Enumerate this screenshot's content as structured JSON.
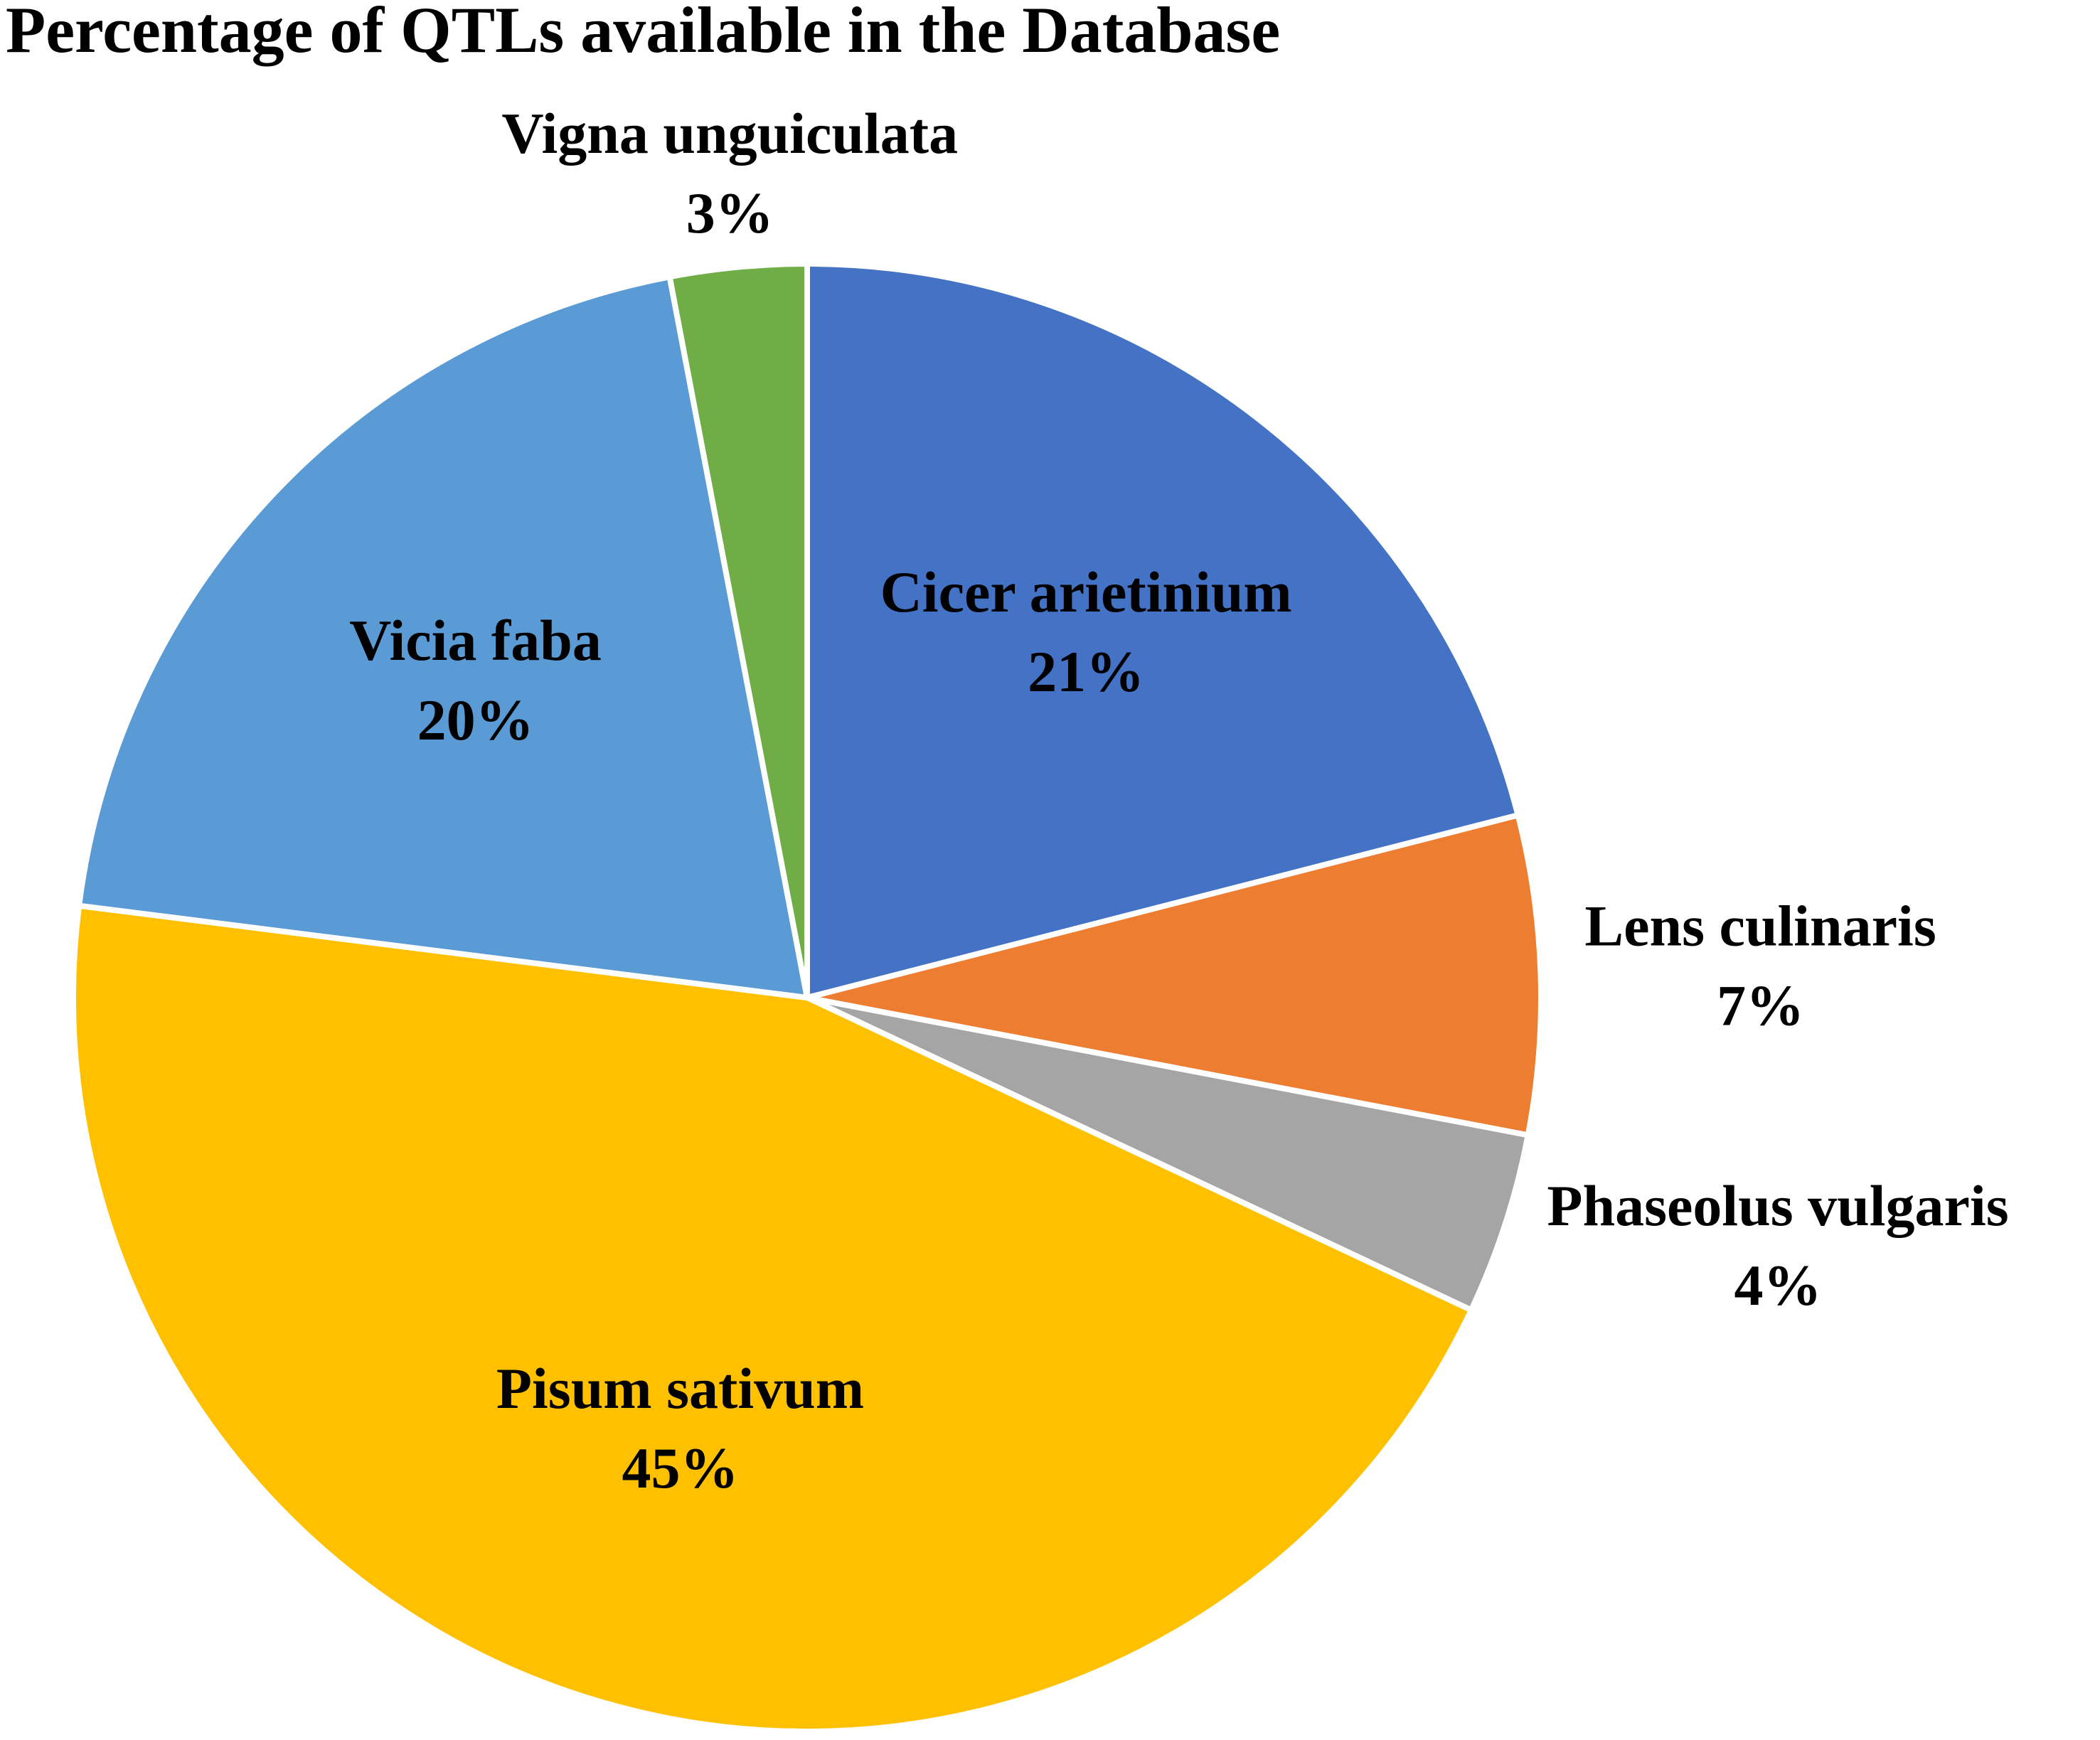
{
  "chart_data": {
    "type": "pie",
    "title": "Percentage of QTLs available in the Database",
    "categories": [
      "Cicer arietinium",
      "Lens culinaris",
      "Phaseolus vulgaris",
      "Pisum sativum",
      "Vicia faba",
      "Vigna unguiculata"
    ],
    "values": [
      21,
      7,
      4,
      45,
      20,
      3
    ],
    "value_labels": [
      "21%",
      "7%",
      "4%",
      "45%",
      "20%",
      "3%"
    ],
    "colors": [
      "#4472c4",
      "#ed7d31",
      "#a5a5a5",
      "#ffc000",
      "#5b9bd5",
      "#70ad47"
    ]
  }
}
